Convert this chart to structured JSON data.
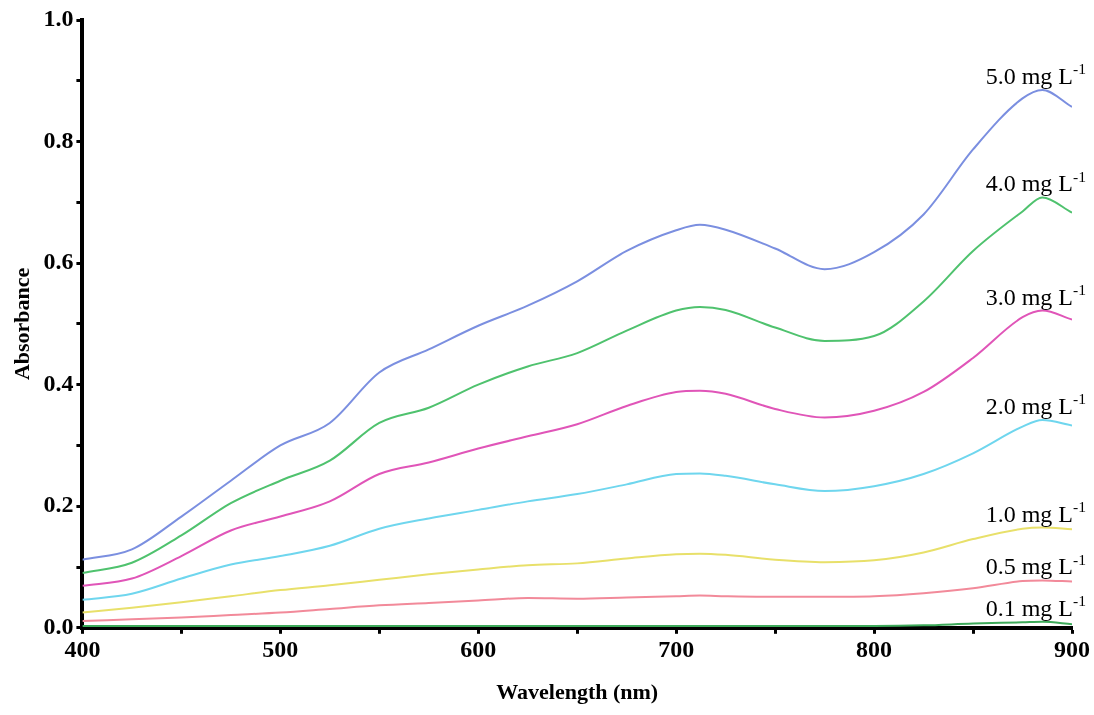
{
  "chart_data": {
    "type": "line",
    "xlabel": "Wavelength (nm)",
    "ylabel": "Absorbance",
    "x": [
      400,
      425,
      450,
      475,
      500,
      525,
      550,
      575,
      600,
      625,
      650,
      675,
      700,
      712,
      725,
      750,
      775,
      800,
      825,
      850,
      875,
      885,
      900
    ],
    "xlim": [
      400,
      900
    ],
    "xticks": [
      400,
      {
        "value": 450,
        "label": null
      },
      500,
      {
        "value": 550,
        "label": null
      },
      600,
      {
        "value": 650,
        "label": null
      },
      700,
      {
        "value": 750,
        "label": null
      },
      800,
      {
        "value": 850,
        "label": null
      },
      900
    ],
    "ylim": [
      0,
      1
    ],
    "yticks": [
      {
        "value": 0,
        "label": "0.0"
      },
      {
        "value": 0.1,
        "label": null
      },
      {
        "value": 0.2,
        "label": "0.2"
      },
      {
        "value": 0.3,
        "label": null
      },
      {
        "value": 0.4,
        "label": "0.4"
      },
      {
        "value": 0.5,
        "label": null
      },
      {
        "value": 0.6,
        "label": "0.6"
      },
      {
        "value": 0.7,
        "label": null
      },
      {
        "value": 0.8,
        "label": "0.8"
      },
      {
        "value": 0.9,
        "label": null
      },
      {
        "value": 1,
        "label": "1.0"
      }
    ],
    "grid": false,
    "legend": false,
    "marker": "none",
    "line_style": "solid",
    "series": [
      {
        "name": "5.0 mg L$^{-1}$",
        "color": "#7b8fe0",
        "values": [
          0.112,
          0.129,
          0.183,
          0.242,
          0.3,
          0.337,
          0.42,
          0.458,
          0.497,
          0.53,
          0.57,
          0.62,
          0.654,
          0.663,
          0.655,
          0.624,
          0.59,
          0.618,
          0.68,
          0.787,
          0.871,
          0.885,
          0.857
        ]
      },
      {
        "name": "4.0 mg L$^{-1}$",
        "color": "#4fc26e",
        "values": [
          0.09,
          0.107,
          0.152,
          0.205,
          0.242,
          0.275,
          0.337,
          0.362,
          0.4,
          0.43,
          0.452,
          0.489,
          0.522,
          0.528,
          0.523,
          0.494,
          0.472,
          0.48,
          0.537,
          0.62,
          0.685,
          0.708,
          0.683
        ]
      },
      {
        "name": "3.0 mg L$^{-1}$",
        "color": "#e055b8",
        "values": [
          0.069,
          0.081,
          0.118,
          0.16,
          0.183,
          0.208,
          0.253,
          0.272,
          0.295,
          0.315,
          0.335,
          0.365,
          0.388,
          0.39,
          0.385,
          0.36,
          0.346,
          0.357,
          0.388,
          0.444,
          0.511,
          0.522,
          0.507
        ]
      },
      {
        "name": "2.0 mg L$^{-1}$",
        "color": "#6fd6ee",
        "values": [
          0.046,
          0.056,
          0.081,
          0.104,
          0.118,
          0.135,
          0.163,
          0.18,
          0.194,
          0.208,
          0.22,
          0.236,
          0.253,
          0.254,
          0.25,
          0.236,
          0.225,
          0.233,
          0.253,
          0.287,
          0.331,
          0.342,
          0.333
        ]
      },
      {
        "name": "1.0 mg L$^{-1}$",
        "color": "#e8e06a",
        "values": [
          0.025,
          0.033,
          0.042,
          0.052,
          0.062,
          0.07,
          0.079,
          0.088,
          0.096,
          0.103,
          0.106,
          0.114,
          0.121,
          0.122,
          0.12,
          0.112,
          0.108,
          0.111,
          0.124,
          0.146,
          0.163,
          0.165,
          0.162
        ]
      },
      {
        "name": "0.5 mg L$^{-1}$",
        "color": "#f28a9a",
        "values": [
          0.011,
          0.014,
          0.017,
          0.021,
          0.025,
          0.031,
          0.037,
          0.041,
          0.045,
          0.049,
          0.048,
          0.05,
          0.052,
          0.053,
          0.052,
          0.051,
          0.051,
          0.052,
          0.057,
          0.065,
          0.077,
          0.078,
          0.076
        ]
      },
      {
        "name": "0.1 mg L$^{-1}$",
        "color": "#3daa5a",
        "values": [
          0.003,
          0.003,
          0.003,
          0.003,
          0.003,
          0.003,
          0.003,
          0.003,
          0.003,
          0.003,
          0.003,
          0.003,
          0.003,
          0.003,
          0.003,
          0.003,
          0.003,
          0.003,
          0.004,
          0.007,
          0.009,
          0.01,
          0.006
        ]
      }
    ]
  }
}
